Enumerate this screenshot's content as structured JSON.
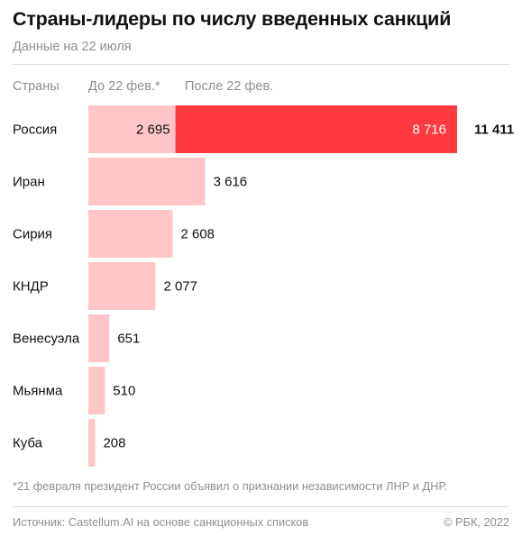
{
  "title": "Страны-лидеры по числу введенных санкций",
  "subtitle": "Данные на 22 июля",
  "header": {
    "col_countries": "Страны",
    "col_before": "До 22 фев.*",
    "col_after": "После 22 фев."
  },
  "colors": {
    "before": "#ffc5c7",
    "after": "#ff3b40",
    "text": "#111111",
    "muted": "#8f8f8f"
  },
  "chart_data": {
    "type": "bar",
    "orientation": "horizontal",
    "stacked": true,
    "categories": [
      "Россия",
      "Иран",
      "Сирия",
      "КНДР",
      "Венесуэла",
      "Мьянма",
      "Куба"
    ],
    "series": [
      {
        "name": "До 22 фев.*",
        "values": [
          2695,
          3616,
          2608,
          2077,
          651,
          510,
          208
        ]
      },
      {
        "name": "После 22 фев.",
        "values": [
          8716,
          null,
          null,
          null,
          null,
          null,
          null
        ]
      }
    ],
    "labels_before": [
      "2 695",
      "3 616",
      "2 608",
      "2 077",
      "651",
      "510",
      "208"
    ],
    "labels_after": [
      "8 716",
      "",
      "",
      "",
      "",
      "",
      ""
    ],
    "labels_total": [
      "11 411",
      "",
      "",
      "",
      "",
      "",
      ""
    ],
    "xlim": [
      0,
      11411
    ],
    "grid": false
  },
  "footnote": "*21 февраля президент России объявил о признании независимости ЛНР и ДНР.",
  "source": "Источник: Castellum.AI на основе санкционных списков",
  "copyright": "© РБК, 2022"
}
